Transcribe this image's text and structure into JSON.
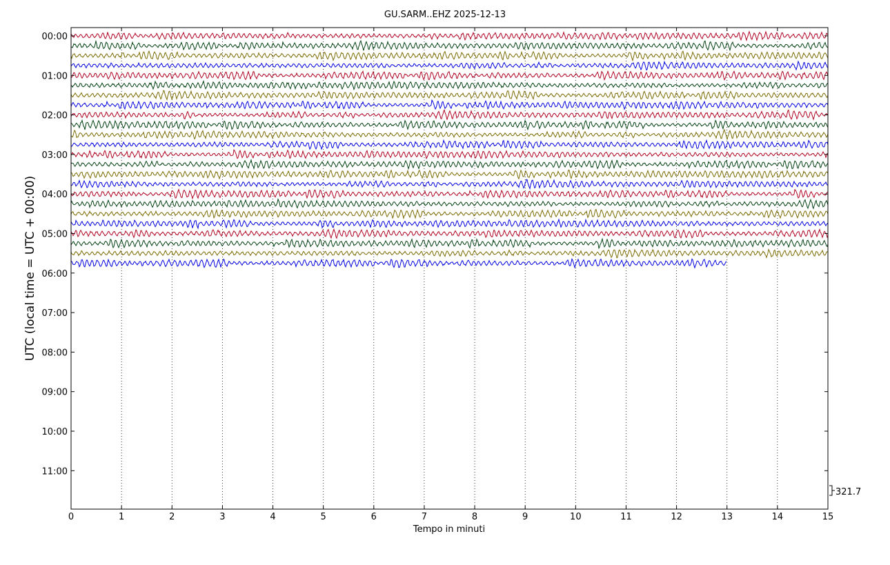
{
  "chart_data": {
    "type": "line",
    "title": "GU.SARM..EHZ 2025-12-13",
    "xlabel": "Tempo in minuti",
    "ylabel": "UTC (local time = UTC + 00:00)",
    "xlim": [
      0,
      15
    ],
    "x_ticks": [
      "0",
      "1",
      "2",
      "3",
      "4",
      "5",
      "6",
      "7",
      "8",
      "9",
      "10",
      "11",
      "12",
      "13",
      "14",
      "15"
    ],
    "y_ticks": [
      "00:00",
      "01:00",
      "02:00",
      "03:00",
      "04:00",
      "05:00",
      "06:00",
      "07:00",
      "08:00",
      "09:00",
      "10:00",
      "11:00"
    ],
    "trace_colors": [
      "#b00020",
      "#004010",
      "#7a6a00",
      "#0000e0"
    ],
    "traces_per_hour": 4,
    "full_traces": 23,
    "last_trace_end_minute": 13,
    "scale_label": "321.7",
    "grid": "vertical dotted"
  }
}
